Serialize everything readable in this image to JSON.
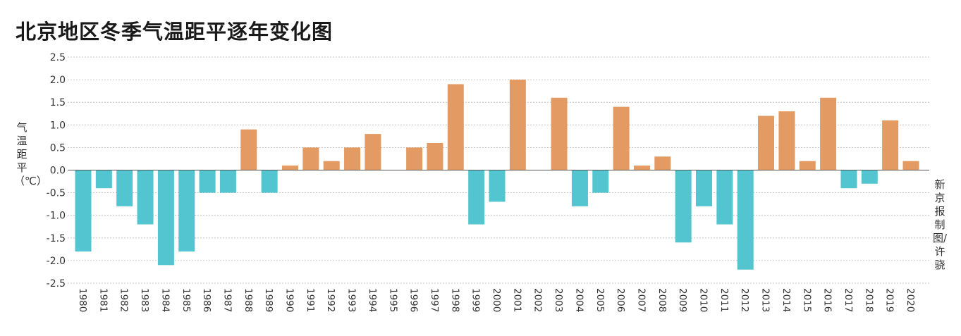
{
  "chart_data": {
    "type": "bar",
    "title": "北京地区冬季气温距平逐年变化图",
    "ylabel": "气温距平（℃）",
    "credit": "新京报制图/许骁",
    "ylim": [
      -2.5,
      2.5
    ],
    "yticks": [
      "2.5",
      "2.0",
      "1.5",
      "1.0",
      "0.5",
      "0.0",
      "-0.5",
      "-1.0",
      "-1.5",
      "-2.0",
      "-2.5"
    ],
    "grid": true,
    "colors": {
      "positive": "#e39a63",
      "negative": "#52c5d0"
    },
    "categories": [
      "1980",
      "1981",
      "1982",
      "1983",
      "1984",
      "1985",
      "1986",
      "1987",
      "1988",
      "1989",
      "1990",
      "1991",
      "1992",
      "1993",
      "1994",
      "1995",
      "1996",
      "1997",
      "1998",
      "1999",
      "2000",
      "2001",
      "2002",
      "2003",
      "2004",
      "2005",
      "2006",
      "2007",
      "2008",
      "2009",
      "2010",
      "2011",
      "2012",
      "2013",
      "2014",
      "2015",
      "2016",
      "2017",
      "2018",
      "2019",
      "2020"
    ],
    "values": [
      -1.8,
      -0.4,
      -0.8,
      -1.2,
      -2.1,
      -1.8,
      -0.5,
      -0.5,
      0.9,
      -0.5,
      0.1,
      0.5,
      0.2,
      0.5,
      0.8,
      0,
      0.5,
      0.6,
      1.9,
      -1.2,
      -0.7,
      2.0,
      0,
      1.6,
      -0.8,
      -0.5,
      1.4,
      0.1,
      0.3,
      -1.6,
      -0.8,
      -1.2,
      -2.2,
      1.2,
      1.3,
      0.2,
      1.6,
      -0.4,
      -0.3,
      1.1,
      0.2
    ]
  }
}
